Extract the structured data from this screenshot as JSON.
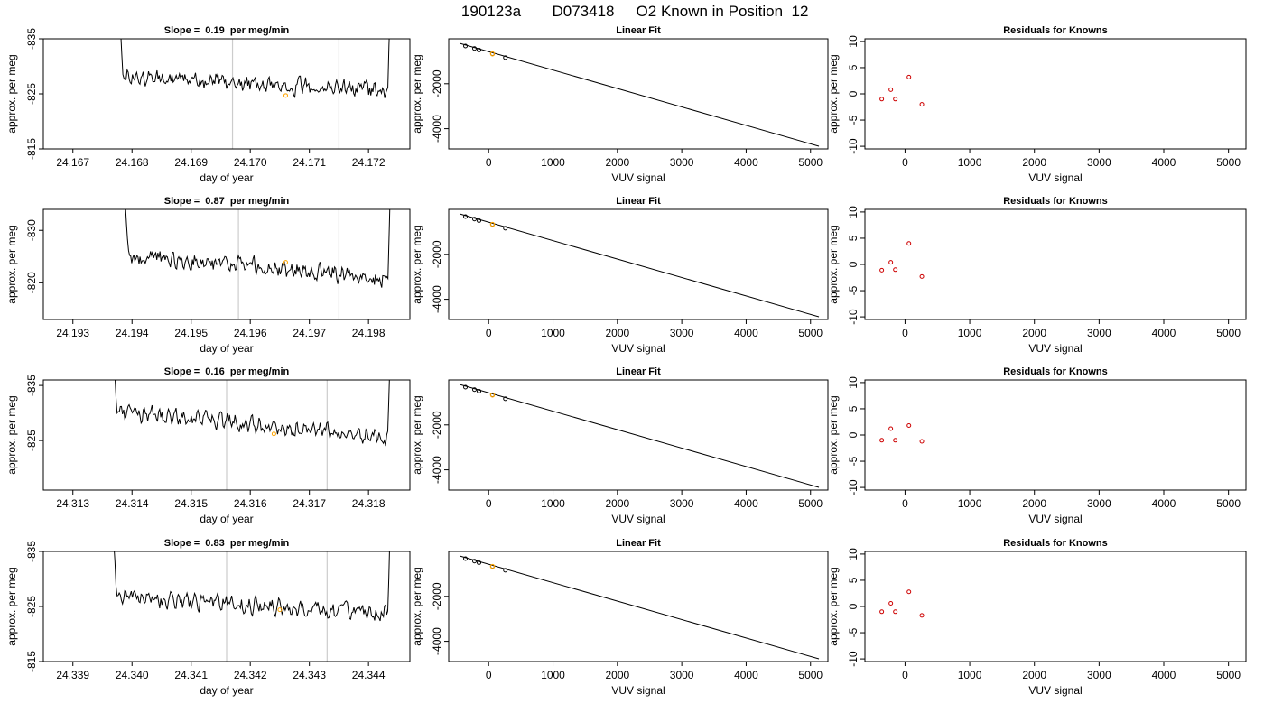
{
  "header": {
    "run_id": "190123a",
    "tank_id": "D073418",
    "description": "O2 Known in Position  12"
  },
  "chart_data": [
    {
      "type": "line",
      "panel": "timeseries",
      "title": "Slope =  0.19  per meg/min",
      "xlabel": "day of year",
      "ylabel": "approx. per meg",
      "xlim": [
        24.1665,
        24.1727
      ],
      "ylim": [
        -835,
        -815
      ],
      "y_reversed": true,
      "x_ticks": [
        "24.167",
        "24.168",
        "24.169",
        "24.170",
        "24.171",
        "24.172"
      ],
      "y_ticks": [
        "-815",
        "-825",
        "-835"
      ],
      "series_start": 24.1677,
      "series_end": 24.1724,
      "base": -828.2,
      "trend": 2.6,
      "vlines": [
        24.1697,
        24.1715
      ],
      "marker": {
        "x": 24.1706,
        "y": -824.7,
        "color": "#ffa500"
      }
    },
    {
      "type": "scatter",
      "panel": "linear-fit",
      "title": "Linear Fit",
      "xlabel": "VUV signal",
      "ylabel": "approx. per meg",
      "xlim": [
        -620,
        5270
      ],
      "ylim": [
        -4900,
        0
      ],
      "x_ticks": [
        "0",
        "1000",
        "2000",
        "3000",
        "4000",
        "5000"
      ],
      "y_ticks": [
        "-2000",
        "-4000"
      ],
      "line": {
        "x": [
          -450,
          5130
        ],
        "y": [
          -200,
          -4780
        ]
      },
      "points": {
        "x": [
          -360,
          -220,
          -150,
          60,
          260
        ],
        "y": [
          -320,
          -430,
          -500,
          -670,
          -840
        ]
      },
      "highlight": {
        "x": 60,
        "y": -670,
        "color": "#ffa500"
      }
    },
    {
      "type": "scatter",
      "panel": "residuals",
      "title": "Residuals for Knowns",
      "xlabel": "VUV signal",
      "ylabel": "approx. per meg",
      "xlim": [
        -620,
        5270
      ],
      "ylim": [
        -10.5,
        10.5
      ],
      "x_ticks": [
        "0",
        "1000",
        "2000",
        "3000",
        "4000",
        "5000"
      ],
      "y_ticks": [
        "10",
        "5",
        "0",
        "-5",
        "-10"
      ],
      "points": {
        "x": [
          -360,
          -220,
          -150,
          60,
          260
        ],
        "y": [
          -1,
          0.8,
          -1,
          3.2,
          -2
        ]
      },
      "point_color": "#cd0000"
    },
    {
      "type": "line",
      "panel": "timeseries",
      "title": "Slope =  0.87  per meg/min",
      "xlabel": "day of year",
      "ylabel": "approx. per meg",
      "xlim": [
        24.1925,
        24.1987
      ],
      "ylim": [
        -834,
        -813
      ],
      "y_reversed": true,
      "x_ticks": [
        "24.193",
        "24.194",
        "24.195",
        "24.196",
        "24.197",
        "24.198"
      ],
      "y_ticks": [
        "-820",
        "-830"
      ],
      "series_start": 24.1938,
      "series_end": 24.1984,
      "base": -825.4,
      "trend": 4.6,
      "vlines": [
        24.1958,
        24.1975
      ],
      "marker": {
        "x": 24.1966,
        "y": -823.9,
        "color": "#ffa500"
      }
    },
    {
      "type": "scatter",
      "panel": "linear-fit",
      "title": "Linear Fit",
      "xlabel": "VUV signal",
      "ylabel": "approx. per meg",
      "xlim": [
        -620,
        5270
      ],
      "ylim": [
        -4900,
        0
      ],
      "x_ticks": [
        "0",
        "1000",
        "2000",
        "3000",
        "4000",
        "5000"
      ],
      "y_ticks": [
        "-2000",
        "-4000"
      ],
      "line": {
        "x": [
          -450,
          5130
        ],
        "y": [
          -200,
          -4780
        ]
      },
      "points": {
        "x": [
          -360,
          -220,
          -150,
          60,
          260
        ],
        "y": [
          -320,
          -430,
          -500,
          -670,
          -840
        ]
      },
      "highlight": {
        "x": 60,
        "y": -670,
        "color": "#ffa500"
      }
    },
    {
      "type": "scatter",
      "panel": "residuals",
      "title": "Residuals for Knowns",
      "xlabel": "VUV signal",
      "ylabel": "approx. per meg",
      "xlim": [
        -620,
        5270
      ],
      "ylim": [
        -10.5,
        10.5
      ],
      "x_ticks": [
        "0",
        "1000",
        "2000",
        "3000",
        "4000",
        "5000"
      ],
      "y_ticks": [
        "10",
        "5",
        "0",
        "-5",
        "-10"
      ],
      "points": {
        "x": [
          -360,
          -220,
          -150,
          60,
          260
        ],
        "y": [
          -1.1,
          0.4,
          -1,
          4,
          -2.3
        ]
      },
      "point_color": "#cd0000"
    },
    {
      "type": "line",
      "panel": "timeseries",
      "title": "Slope =  0.16  per meg/min",
      "xlabel": "day of year",
      "ylabel": "approx. per meg",
      "xlim": [
        24.3125,
        24.3187
      ],
      "ylim": [
        -836,
        -816
      ],
      "y_reversed": true,
      "x_ticks": [
        "24.313",
        "24.314",
        "24.315",
        "24.316",
        "24.317",
        "24.318"
      ],
      "y_ticks": [
        "-825",
        "-835"
      ],
      "series_start": 24.3136,
      "series_end": 24.3184,
      "base": -830.4,
      "trend": 5.0,
      "vlines": [
        24.3156,
        24.3173
      ],
      "marker": {
        "x": 24.3164,
        "y": -826.2,
        "color": "#ffa500"
      }
    },
    {
      "type": "scatter",
      "panel": "linear-fit",
      "title": "Linear Fit",
      "xlabel": "VUV signal",
      "ylabel": "approx. per meg",
      "xlim": [
        -620,
        5270
      ],
      "ylim": [
        -4900,
        0
      ],
      "x_ticks": [
        "0",
        "1000",
        "2000",
        "3000",
        "4000",
        "5000"
      ],
      "y_ticks": [
        "-2000",
        "-4000"
      ],
      "line": {
        "x": [
          -450,
          5130
        ],
        "y": [
          -200,
          -4780
        ]
      },
      "points": {
        "x": [
          -360,
          -220,
          -150,
          60,
          260
        ],
        "y": [
          -320,
          -430,
          -500,
          -670,
          -840
        ]
      },
      "highlight": {
        "x": 60,
        "y": -670,
        "color": "#ffa500"
      }
    },
    {
      "type": "scatter",
      "panel": "residuals",
      "title": "Residuals for Knowns",
      "xlabel": "VUV signal",
      "ylabel": "approx. per meg",
      "xlim": [
        -620,
        5270
      ],
      "ylim": [
        -10.5,
        10.5
      ],
      "x_ticks": [
        "0",
        "1000",
        "2000",
        "3000",
        "4000",
        "5000"
      ],
      "y_ticks": [
        "10",
        "5",
        "0",
        "-5",
        "-10"
      ],
      "points": {
        "x": [
          -360,
          -220,
          -150,
          60,
          260
        ],
        "y": [
          -1,
          1.2,
          -1,
          1.8,
          -1.2
        ]
      },
      "point_color": "#cd0000"
    },
    {
      "type": "line",
      "panel": "timeseries",
      "title": "Slope =  0.83  per meg/min",
      "xlabel": "day of year",
      "ylabel": "approx. per meg",
      "xlim": [
        24.3385,
        24.3447
      ],
      "ylim": [
        -835,
        -815
      ],
      "y_reversed": true,
      "x_ticks": [
        "24.339",
        "24.340",
        "24.341",
        "24.342",
        "24.343",
        "24.344"
      ],
      "y_ticks": [
        "-815",
        "-825",
        "-835"
      ],
      "series_start": 24.3396,
      "series_end": 24.3444,
      "base": -826.8,
      "trend": 3.0,
      "vlines": [
        24.3416,
        24.3433
      ],
      "marker": {
        "x": 24.3425,
        "y": -824.4,
        "color": "#ffa500"
      }
    },
    {
      "type": "scatter",
      "panel": "linear-fit",
      "title": "Linear Fit",
      "xlabel": "VUV signal",
      "ylabel": "approx. per meg",
      "xlim": [
        -620,
        5270
      ],
      "ylim": [
        -4900,
        0
      ],
      "x_ticks": [
        "0",
        "1000",
        "2000",
        "3000",
        "4000",
        "5000"
      ],
      "y_ticks": [
        "-2000",
        "-4000"
      ],
      "line": {
        "x": [
          -450,
          5130
        ],
        "y": [
          -200,
          -4780
        ]
      },
      "points": {
        "x": [
          -360,
          -220,
          -150,
          60,
          260
        ],
        "y": [
          -320,
          -430,
          -500,
          -670,
          -840
        ]
      },
      "highlight": {
        "x": 60,
        "y": -670,
        "color": "#ffa500"
      }
    },
    {
      "type": "scatter",
      "panel": "residuals",
      "title": "Residuals for Knowns",
      "xlabel": "VUV signal",
      "ylabel": "approx. per meg",
      "xlim": [
        -620,
        5270
      ],
      "ylim": [
        -10.5,
        10.5
      ],
      "x_ticks": [
        "0",
        "1000",
        "2000",
        "3000",
        "4000",
        "5000"
      ],
      "y_ticks": [
        "10",
        "5",
        "0",
        "-5",
        "-10"
      ],
      "points": {
        "x": [
          -360,
          -220,
          -150,
          60,
          260
        ],
        "y": [
          -1,
          0.6,
          -1,
          2.8,
          -1.7
        ]
      },
      "point_color": "#cd0000"
    }
  ]
}
